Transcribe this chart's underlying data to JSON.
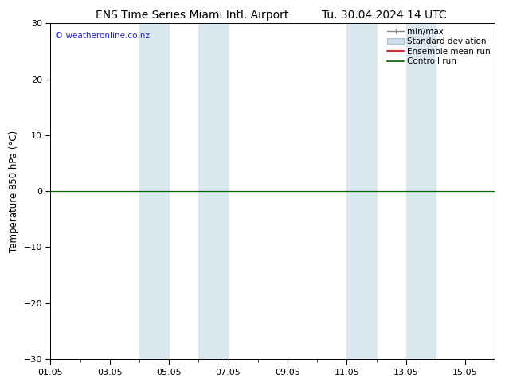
{
  "title_left": "ENS Time Series Miami Intl. Airport",
  "title_right": "Tu. 30.04.2024 14 UTC",
  "ylabel": "Temperature 850 hPa (°C)",
  "ylim": [
    -30,
    30
  ],
  "yticks": [
    -30,
    -20,
    -10,
    0,
    10,
    20,
    30
  ],
  "xstart_day": 0,
  "xend_day": 15,
  "xtick_labels": [
    "01.05",
    "03.05",
    "05.05",
    "07.05",
    "09.05",
    "11.05",
    "13.05",
    "15.05"
  ],
  "xtick_positions_days": [
    0,
    2,
    4,
    6,
    8,
    10,
    12,
    14
  ],
  "shaded_bands": [
    {
      "start_day": 3.0,
      "end_day": 4.0
    },
    {
      "start_day": 5.0,
      "end_day": 6.0
    },
    {
      "start_day": 10.0,
      "end_day": 11.0
    },
    {
      "start_day": 12.0,
      "end_day": 13.0
    }
  ],
  "control_run_value": 0,
  "control_run_color": "#006400",
  "ensemble_mean_color": "#cc0000",
  "min_max_color": "#888888",
  "std_dev_fill_color": "#d0dce8",
  "std_dev_edge_color": "#b0c0d0",
  "band_color": "#dce8f0",
  "copyright_text": "© weatheronline.co.nz",
  "copyright_color": "#2222cc",
  "background_color": "#ffffff",
  "plot_bg_color": "#ffffff",
  "title_fontsize": 10,
  "label_fontsize": 8.5,
  "tick_fontsize": 8,
  "legend_fontsize": 7.5
}
